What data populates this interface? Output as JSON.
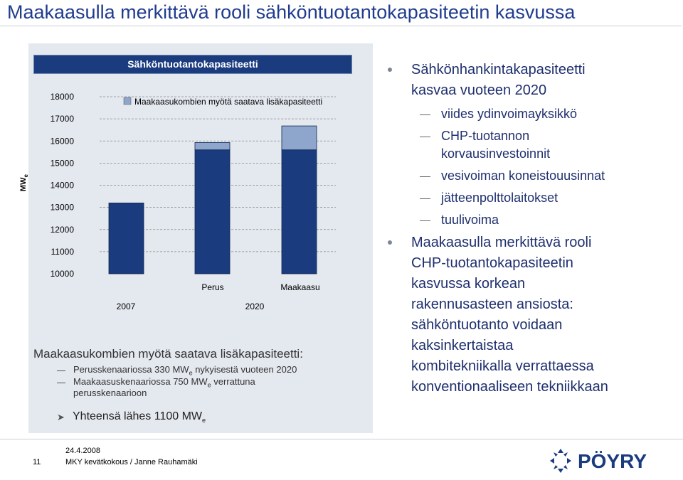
{
  "title": "Maakaasulla merkittävä rooli sähköntuotantokapasiteetin kasvussa",
  "chart_data": {
    "type": "bar",
    "title": "Sähköntuotantokapasiteetti",
    "ylabel_main": "MW",
    "ylabel_sub": "e",
    "ylim": [
      10000,
      18000
    ],
    "yticks": [
      10000,
      11000,
      12000,
      13000,
      14000,
      15000,
      16000,
      17000,
      18000
    ],
    "grid": true,
    "legend_label": "Maakaasukombien myötä saatava lisäkapasiteetti",
    "legend_position": "top",
    "categories": [
      "2007",
      "Perus",
      "Maakaasu"
    ],
    "year_labels": [
      "2007",
      "2020"
    ],
    "series": [
      {
        "values": [
          13200,
          15600,
          15600
        ],
        "color": "#1a3c7f"
      },
      {
        "name": "Maakaasukombien myötä saatava lisäkapasiteetti",
        "values": [
          0,
          330,
          1080
        ],
        "color": "#8ea6cb"
      }
    ]
  },
  "left_panel": {
    "heading": "Maakaasukombien myötä saatava lisäkapasiteetti:",
    "items": [
      {
        "pre": "Perusskenaariossa 330 MW",
        "sub": "e",
        "post": " nykyisestä vuoteen 2020"
      },
      {
        "pre": "Maakaasuskenaariossa 750 MW",
        "sub": "e",
        "post": " verrattuna"
      }
    ],
    "item_continuation": "perusskenaarioon",
    "total_pre": "Yhteensä lähes 1100 MW",
    "total_sub": "e"
  },
  "right_panel": {
    "bullet1": [
      "Sähkönhankintakapasiteetti",
      "kasvaa vuoteen 2020"
    ],
    "sub_items": [
      "viides ydinvoimayksikkö",
      "CHP-tuotannon",
      "korvausinvestoinnit",
      "vesivoiman koneistouusinnat",
      "jätteenpolttolaitokset",
      "tuulivoima"
    ],
    "bullet2": [
      "Maakaasulla merkittävä rooli",
      "CHP-tuotantokapasiteetin",
      "kasvussa korkean",
      "rakennusasteen ansiosta:",
      "sähköntuotanto voidaan",
      "kaksinkertaistaa",
      "kombitekniikalla verrattaessa",
      "konventionaaliseen tekniikkaan"
    ]
  },
  "footer": {
    "page_number": "11",
    "date": "24.4.2008",
    "event": "MKY kevätkokous / Janne Rauhamäki",
    "logo_text": "PÖYRY",
    "logo_color": "#1a3c7f"
  }
}
